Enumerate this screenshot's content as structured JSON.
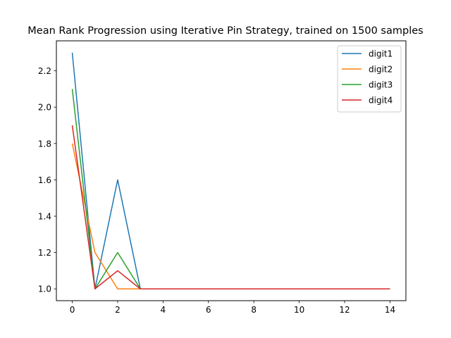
{
  "chart_data": {
    "type": "line",
    "title": "Mean Rank Progression using Iterative Pin Strategy, trained on 1500 samples",
    "xlabel": "",
    "ylabel": "",
    "xlim": [
      -0.7,
      14.7
    ],
    "ylim": [
      0.935,
      2.365
    ],
    "x_ticks": [
      0,
      2,
      4,
      6,
      8,
      10,
      12,
      14
    ],
    "y_ticks": [
      1.0,
      1.2,
      1.4,
      1.6,
      1.8,
      2.0,
      2.2
    ],
    "grid": false,
    "legend_position": "top-right",
    "x": [
      0,
      1,
      2,
      3,
      4,
      5,
      6,
      7,
      8,
      9,
      10,
      11,
      12,
      13,
      14
    ],
    "series": [
      {
        "name": "digit1",
        "color": "#1f77b4",
        "values": [
          2.3,
          1.0,
          1.6,
          1.0,
          1.0,
          1.0,
          1.0,
          1.0,
          1.0,
          1.0,
          1.0,
          1.0,
          1.0,
          1.0,
          1.0
        ]
      },
      {
        "name": "digit2",
        "color": "#ff7f0e",
        "values": [
          1.8,
          1.2,
          1.0,
          1.0,
          1.0,
          1.0,
          1.0,
          1.0,
          1.0,
          1.0,
          1.0,
          1.0,
          1.0,
          1.0,
          1.0
        ]
      },
      {
        "name": "digit3",
        "color": "#2ca02c",
        "values": [
          2.1,
          1.0,
          1.2,
          1.0,
          1.0,
          1.0,
          1.0,
          1.0,
          1.0,
          1.0,
          1.0,
          1.0,
          1.0,
          1.0,
          1.0
        ]
      },
      {
        "name": "digit4",
        "color": "#d62728",
        "values": [
          1.9,
          1.0,
          1.1,
          1.0,
          1.0,
          1.0,
          1.0,
          1.0,
          1.0,
          1.0,
          1.0,
          1.0,
          1.0,
          1.0,
          1.0
        ]
      }
    ]
  }
}
